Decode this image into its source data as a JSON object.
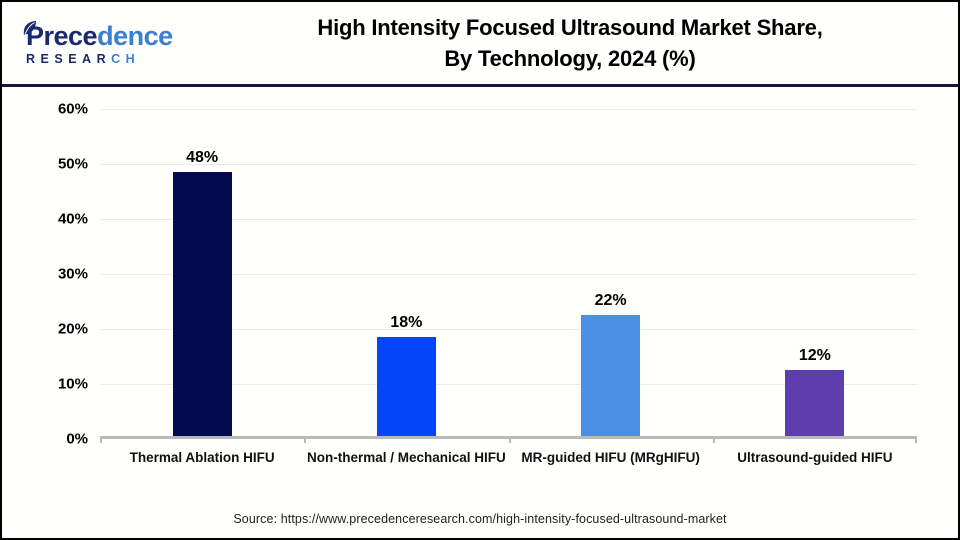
{
  "header": {
    "logo": {
      "brand_text": "Precedence",
      "brand_split": 5,
      "sub_text": "RESEARCH",
      "sub_split": 6,
      "color_dark": "#1b2a6b",
      "color_light": "#3b7fd4",
      "leaf_icon": "leaf-icon"
    },
    "title_line1": "High Intensity Focused Ultrasound Market Share,",
    "title_line2": "By Technology, 2024 (%)"
  },
  "chart_data": {
    "type": "bar",
    "title": "High Intensity Focused Ultrasound Market Share, By Technology, 2024 (%)",
    "categories": [
      "Thermal Ablation HIFU",
      "Non-thermal / Mechanical HIFU",
      "MR-guided HIFU (MRgHIFU)",
      "Ultrasound-guided HIFU"
    ],
    "values": [
      48,
      18,
      22,
      12
    ],
    "value_labels": [
      "48%",
      "18%",
      "22%",
      "12%"
    ],
    "bar_colors": [
      "#02094e",
      "#0546fa",
      "#4a90e8",
      "#5e3eac"
    ],
    "xlabel": "",
    "ylabel": "",
    "ylim": [
      0,
      60
    ],
    "ytick_step": 10,
    "ytick_labels": [
      "0%",
      "10%",
      "20%",
      "30%",
      "40%",
      "50%",
      "60%"
    ],
    "grid": true,
    "legend": false
  },
  "footer": {
    "source": "Source: https://www.precedenceresearch.com/high-intensity-focused-ultrasound-market"
  },
  "colors": {
    "header_divider": "#15153f",
    "frame_border": "#000000",
    "gridline": "#eaeaea",
    "axis_line": "#b9b9b9",
    "background": "#fffffd"
  }
}
